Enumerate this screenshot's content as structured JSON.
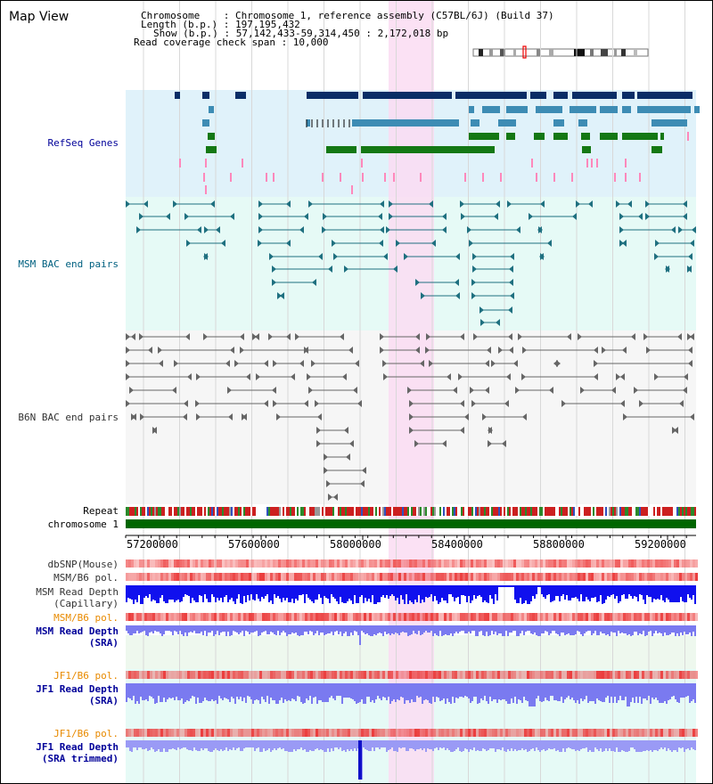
{
  "header": {
    "title": "Map View",
    "info_lines": [
      "Chromosome    : Chromosome 1, reference assembly (C57BL/6J) (Build 37)",
      "Length (b.p.) : 197,195,432",
      "Show (b.p.) : 57,142,433-59,314,450 : 2,172,018 bp",
      "Read coverage check span : 10,000"
    ]
  },
  "tracks": {
    "refseq": "RefSeq Genes",
    "msm_bac": "MSM BAC end pairs",
    "b6n_bac": "B6N BAC end pairs",
    "repeat": "Repeat",
    "chromosome": "chromosome 1",
    "dbsnp": "dbSNP(Mouse)",
    "msm_b6_pol": "MSM/B6 pol.",
    "msm_read_depth_cap": "MSM Read Depth\n(Capillary)",
    "msm_b6_pol_2": "MSM/B6 pol.",
    "msm_read_depth_sra": "MSM Read Depth\n(SRA)",
    "jf1_b6_pol": "JF1/B6 pol.",
    "jf1_read_depth_sra": "JF1 Read Depth\n(SRA)",
    "jf1_b6_pol_2": "JF1/B6 pol.",
    "jf1_read_depth_trim": "JF1 Read Depth\n(SRA trimmed)"
  },
  "axis": {
    "ticks": [
      "57200000",
      "57600000",
      "58000000",
      "58400000",
      "58800000",
      "59200000"
    ]
  },
  "colors": {
    "refseq_bg": "#e0f2fa",
    "msm_bg": "#e6faf6",
    "b6n_bg": "#f6f6f6",
    "highlight": "#fadcf2",
    "gene_dark": "#0a2d66",
    "gene_mid": "#3d8cb4",
    "gene_green": "#147814",
    "pink": "#ff88bb",
    "msm_feature": "#1f7080",
    "b6n_feature": "#666666",
    "chromosome_bar": "#006600",
    "depth_capillary": "#1010ee",
    "depth_sra": "#7a7af0",
    "label_dark_blue": "#000099",
    "label_orange": "#e88a00",
    "label_teal": "#006080"
  }
}
